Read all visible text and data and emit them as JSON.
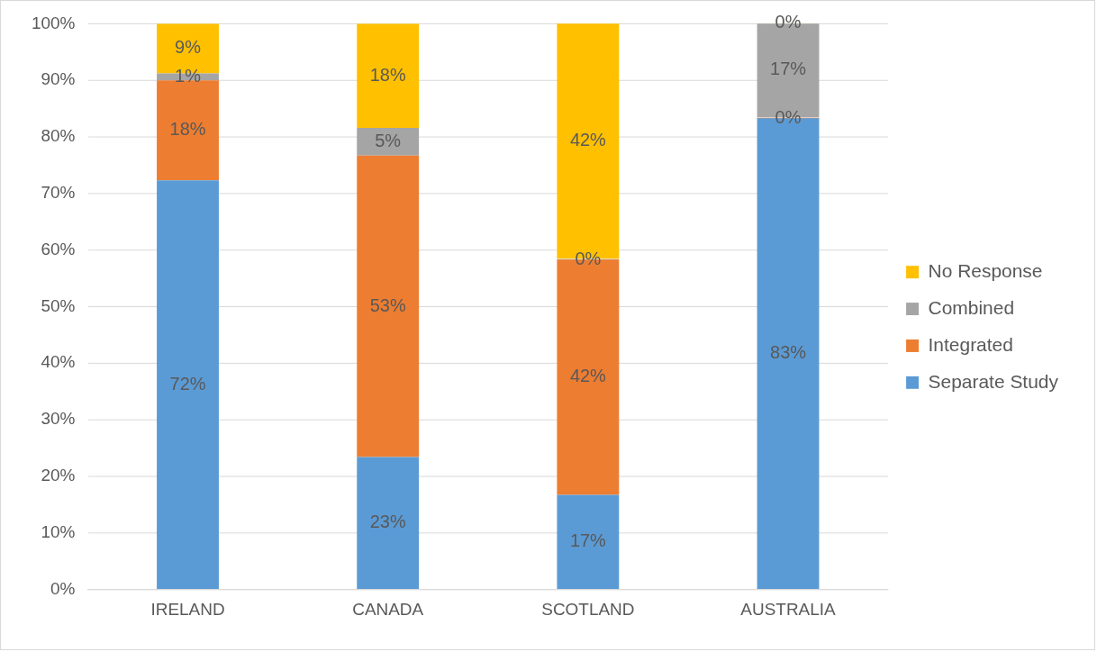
{
  "chart_data": {
    "type": "bar",
    "stacked": true,
    "categories": [
      "IRELAND",
      "CANADA",
      "SCOTLAND",
      "AUSTRALIA"
    ],
    "series": [
      {
        "name": "Separate Study",
        "color": "#5b9bd5",
        "values": [
          72.3,
          23.4,
          16.7,
          83.3
        ],
        "value_labels": [
          "72%",
          "23%",
          "17%",
          "83%"
        ]
      },
      {
        "name": "Integrated",
        "color": "#ed7d31",
        "values": [
          17.7,
          53.3,
          41.6,
          0
        ],
        "value_labels": [
          "18%",
          "53%",
          "42%",
          "0%"
        ]
      },
      {
        "name": "Combined",
        "color": "#a5a5a5",
        "values": [
          1.2,
          4.9,
          0,
          16.7
        ],
        "value_labels": [
          "1%",
          "5%",
          "0%",
          "17%"
        ]
      },
      {
        "name": "No Response",
        "color": "#ffc000",
        "values": [
          8.8,
          18.4,
          41.7,
          0
        ],
        "value_labels": [
          "9%",
          "18%",
          "42%",
          "0%"
        ]
      }
    ],
    "ylim": [
      0,
      100
    ],
    "yticks": [
      {
        "value": 0,
        "label": "0%"
      },
      {
        "value": 10,
        "label": "10%"
      },
      {
        "value": 20,
        "label": "20%"
      },
      {
        "value": 30,
        "label": "30%"
      },
      {
        "value": 40,
        "label": "40%"
      },
      {
        "value": 50,
        "label": "50%"
      },
      {
        "value": 60,
        "label": "60%"
      },
      {
        "value": 70,
        "label": "70%"
      },
      {
        "value": 80,
        "label": "80%"
      },
      {
        "value": 90,
        "label": "90%"
      },
      {
        "value": 100,
        "label": "100%"
      }
    ],
    "grid": "y",
    "legend": "right"
  }
}
